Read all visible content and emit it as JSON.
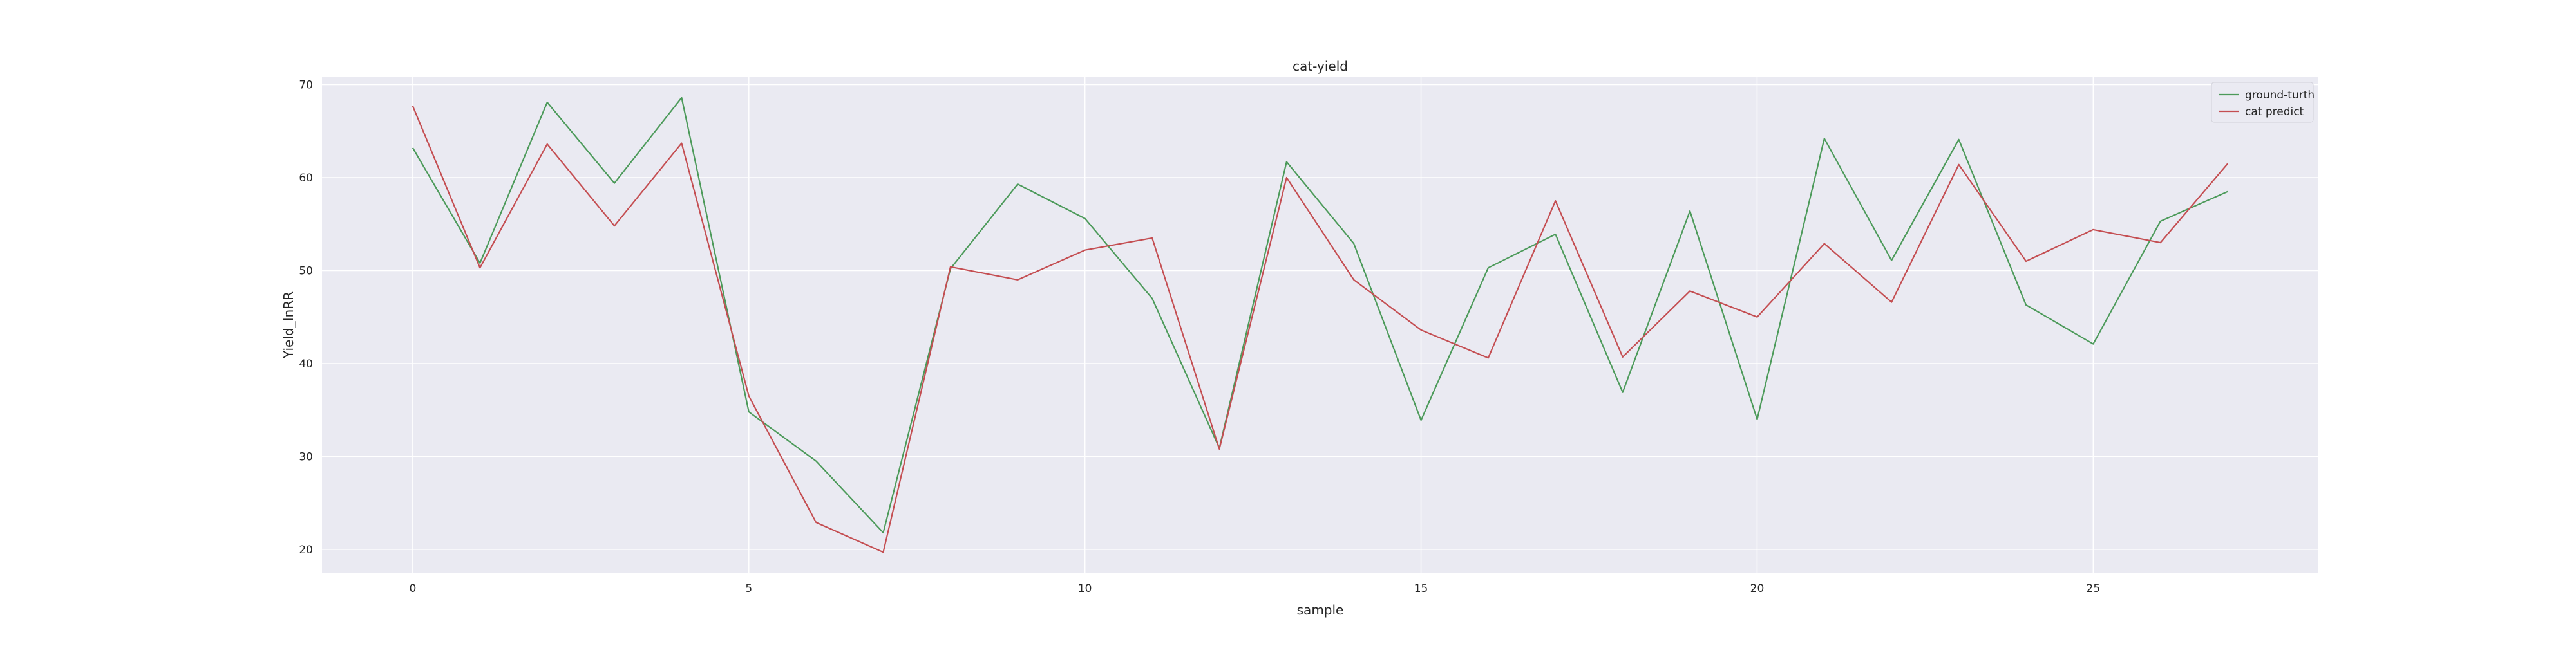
{
  "chart_data": {
    "type": "line",
    "title": "cat-yield",
    "xlabel": "sample",
    "ylabel": "Yield_InRR",
    "xlim": [
      -1.35,
      28.35
    ],
    "ylim": [
      17.5,
      70.8
    ],
    "xticks": [
      0,
      5,
      10,
      15,
      20,
      25
    ],
    "yticks": [
      20,
      30,
      40,
      50,
      60,
      70
    ],
    "grid": true,
    "legend_position": "top-right",
    "x": [
      0,
      1,
      2,
      3,
      4,
      5,
      6,
      7,
      8,
      9,
      10,
      11,
      12,
      13,
      14,
      15,
      16,
      17,
      18,
      19,
      20,
      21,
      22,
      23,
      24,
      25,
      26,
      27
    ],
    "series": [
      {
        "name": "ground-turth",
        "color": "#4c9a5a",
        "values": [
          63.2,
          50.8,
          68.1,
          59.4,
          68.6,
          34.8,
          29.5,
          21.8,
          50.2,
          59.3,
          55.6,
          47.0,
          30.9,
          61.7,
          52.9,
          33.9,
          50.3,
          53.9,
          36.9,
          56.4,
          34.0,
          64.2,
          51.1,
          64.1,
          46.3,
          42.1,
          55.3,
          58.5
        ]
      },
      {
        "name": "cat predict",
        "color": "#c44e52",
        "values": [
          67.7,
          50.3,
          63.6,
          54.8,
          63.7,
          36.5,
          22.9,
          19.7,
          50.4,
          49.0,
          52.2,
          53.5,
          30.8,
          60.0,
          49.0,
          43.6,
          40.6,
          57.5,
          40.7,
          47.8,
          45.0,
          52.9,
          46.6,
          61.4,
          51.0,
          54.4,
          53.0,
          61.5
        ]
      }
    ]
  }
}
